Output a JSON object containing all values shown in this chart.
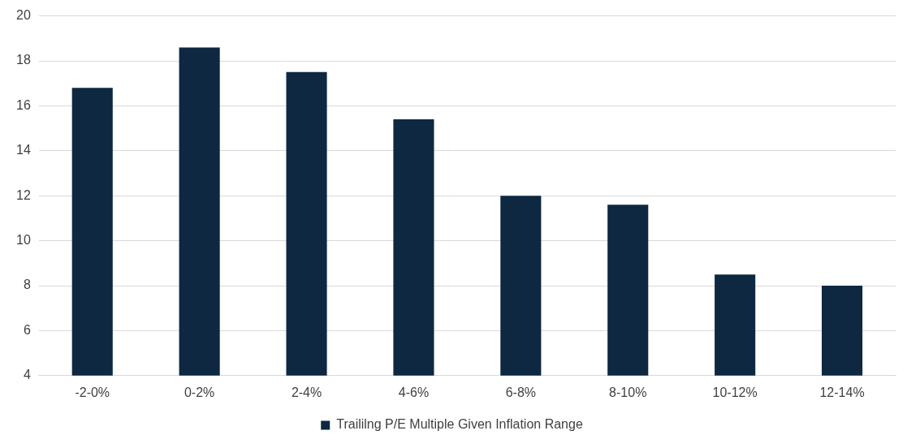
{
  "chart_data": {
    "type": "bar",
    "categories": [
      "-2-0%",
      "0-2%",
      "2-4%",
      "4-6%",
      "6-8%",
      "8-10%",
      "10-12%",
      "12-14%"
    ],
    "series": [
      {
        "name": "Traililng P/E Multiple Given Inflation Range",
        "color": "#0e2841",
        "values": [
          16.8,
          18.6,
          17.5,
          15.4,
          12.0,
          11.6,
          8.5,
          8.0
        ]
      }
    ],
    "ylim": [
      4,
      20
    ],
    "yticks": [
      4,
      6,
      8,
      10,
      12,
      14,
      16,
      18,
      20
    ],
    "grid": "y",
    "legend": "bottom"
  }
}
